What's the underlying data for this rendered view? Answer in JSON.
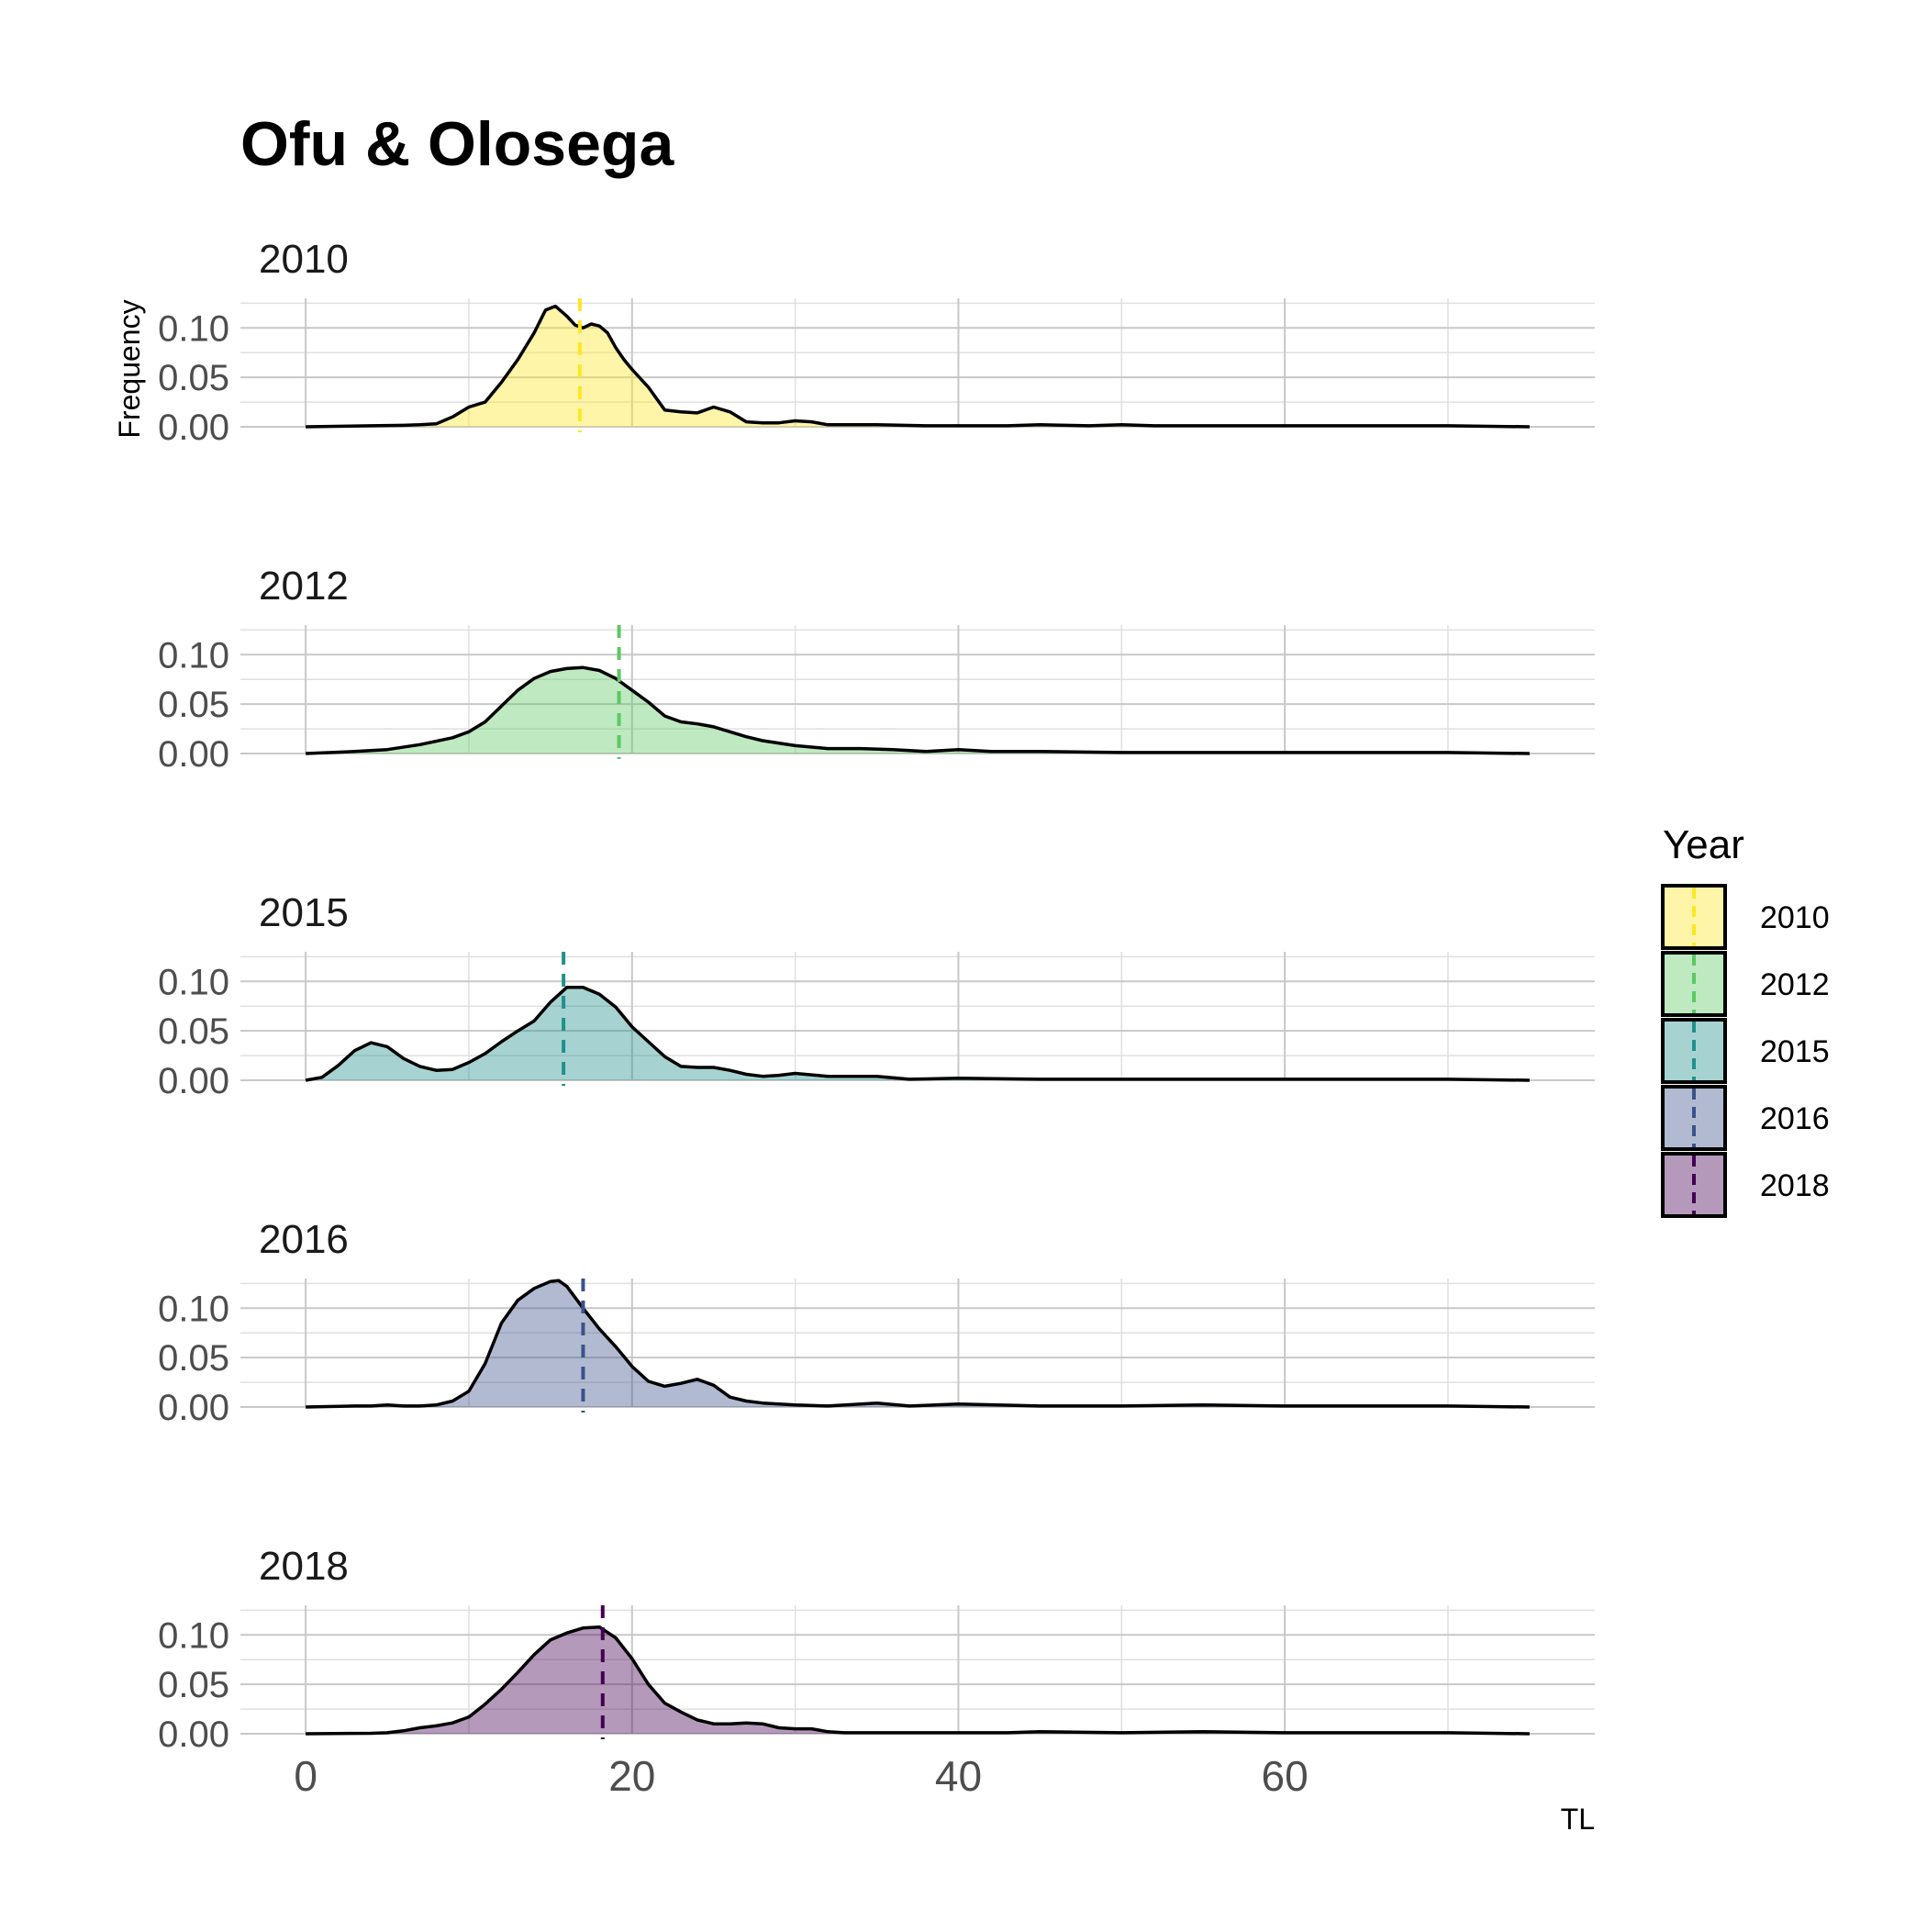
{
  "chart_data": {
    "type": "area",
    "title": "Ofu & Olosega",
    "xlabel": "TL",
    "ylabel": "Frequency",
    "xlim": [
      -4,
      79
    ],
    "ylim": [
      0,
      0.13
    ],
    "x_ticks": [
      0,
      20,
      40,
      60
    ],
    "x_tick_labels": [
      "0",
      "20",
      "40",
      "60"
    ],
    "y_ticks": [
      0.0,
      0.05,
      0.1
    ],
    "y_tick_labels": [
      "0.00",
      "0.05",
      "0.10"
    ],
    "grid": true,
    "legend": {
      "title": "Year",
      "position": "right"
    },
    "series": [
      {
        "name": "2010",
        "strip_label": "2010",
        "fill": "#FDE725",
        "mean_line": "#FDE725",
        "mean": 16.8,
        "x": [
          0,
          4,
          6,
          7,
          8,
          9,
          10,
          11,
          12,
          13,
          14,
          14.7,
          15.3,
          16,
          16.5,
          17,
          17.5,
          18,
          18.5,
          19,
          19.5,
          20,
          21,
          22,
          23,
          24,
          25,
          26,
          27,
          28,
          29,
          30,
          31,
          32,
          35,
          38,
          40,
          43,
          45,
          48,
          50,
          52,
          55,
          60,
          65,
          70,
          75
        ],
        "values": [
          0,
          0.001,
          0.0015,
          0.002,
          0.003,
          0.01,
          0.02,
          0.025,
          0.045,
          0.068,
          0.095,
          0.118,
          0.122,
          0.112,
          0.103,
          0.1,
          0.104,
          0.102,
          0.095,
          0.08,
          0.068,
          0.058,
          0.04,
          0.017,
          0.015,
          0.014,
          0.02,
          0.015,
          0.005,
          0.004,
          0.004,
          0.006,
          0.005,
          0.002,
          0.002,
          0.001,
          0.001,
          0.001,
          0.002,
          0.001,
          0.002,
          0.001,
          0.001,
          0.001,
          0.001,
          0.001,
          0
        ]
      },
      {
        "name": "2012",
        "strip_label": "2012",
        "fill": "#5DC863",
        "mean_line": "#5DC863",
        "mean": 19.2,
        "x": [
          0,
          3,
          5,
          7,
          9,
          10,
          11,
          12,
          13,
          14,
          15,
          16,
          17,
          18,
          19,
          20,
          21,
          22,
          23,
          24,
          25,
          26,
          27,
          28,
          30,
          32,
          34,
          36,
          38,
          40,
          42,
          45,
          50,
          55,
          60,
          65,
          70,
          75
        ],
        "values": [
          0,
          0.002,
          0.004,
          0.009,
          0.016,
          0.022,
          0.032,
          0.048,
          0.064,
          0.076,
          0.083,
          0.086,
          0.087,
          0.084,
          0.076,
          0.064,
          0.052,
          0.038,
          0.032,
          0.03,
          0.027,
          0.022,
          0.017,
          0.013,
          0.008,
          0.005,
          0.005,
          0.004,
          0.002,
          0.004,
          0.002,
          0.002,
          0.001,
          0.001,
          0.001,
          0.001,
          0.001,
          0
        ]
      },
      {
        "name": "2015",
        "strip_label": "2015",
        "fill": "#21908C",
        "mean_line": "#21908C",
        "mean": 15.8,
        "x": [
          0,
          1,
          2,
          3,
          4,
          5,
          6,
          7,
          8,
          9,
          10,
          11,
          12,
          13,
          14,
          15,
          16,
          17,
          18,
          19,
          20,
          21,
          22,
          23,
          24,
          25,
          26,
          27,
          28,
          29,
          30,
          32,
          35,
          37,
          40,
          45,
          50,
          55,
          60,
          65,
          70,
          75
        ],
        "values": [
          0,
          0.003,
          0.015,
          0.03,
          0.038,
          0.034,
          0.022,
          0.014,
          0.01,
          0.011,
          0.018,
          0.027,
          0.039,
          0.05,
          0.06,
          0.079,
          0.094,
          0.094,
          0.087,
          0.074,
          0.054,
          0.039,
          0.024,
          0.014,
          0.013,
          0.013,
          0.01,
          0.006,
          0.004,
          0.005,
          0.007,
          0.004,
          0.004,
          0.001,
          0.002,
          0.001,
          0.001,
          0.001,
          0.001,
          0.001,
          0.001,
          0
        ]
      },
      {
        "name": "2016",
        "strip_label": "2016",
        "fill": "#3B528B",
        "mean_line": "#3B528B",
        "mean": 17.0,
        "x": [
          0,
          3,
          4,
          5,
          6,
          7,
          8,
          9,
          10,
          11,
          12,
          13,
          14,
          15,
          15.5,
          16,
          17,
          18,
          19,
          20,
          21,
          22,
          23,
          24,
          25,
          26,
          27,
          28,
          29,
          30,
          32,
          35,
          37,
          40,
          45,
          50,
          55,
          60,
          65,
          70,
          75
        ],
        "values": [
          0,
          0.001,
          0.001,
          0.002,
          0.001,
          0.001,
          0.002,
          0.006,
          0.016,
          0.044,
          0.085,
          0.108,
          0.12,
          0.127,
          0.128,
          0.122,
          0.1,
          0.079,
          0.061,
          0.041,
          0.026,
          0.021,
          0.024,
          0.028,
          0.022,
          0.01,
          0.006,
          0.004,
          0.003,
          0.002,
          0.001,
          0.004,
          0.001,
          0.003,
          0.001,
          0.001,
          0.002,
          0.001,
          0.001,
          0.001,
          0
        ]
      },
      {
        "name": "2018",
        "strip_label": "2018",
        "fill": "#440154",
        "mean_line": "#440154",
        "mean": 18.2,
        "x": [
          0,
          4,
          5,
          6,
          7,
          8,
          9,
          10,
          11,
          12,
          13,
          14,
          15,
          16,
          17,
          18,
          19,
          20,
          21,
          22,
          23,
          24,
          25,
          26,
          27,
          28,
          29,
          30,
          31,
          32,
          33,
          35,
          38,
          40,
          43,
          45,
          50,
          55,
          60,
          65,
          70,
          75
        ],
        "values": [
          0,
          0.0005,
          0.001,
          0.003,
          0.006,
          0.008,
          0.011,
          0.017,
          0.03,
          0.045,
          0.062,
          0.08,
          0.095,
          0.102,
          0.107,
          0.108,
          0.097,
          0.076,
          0.05,
          0.031,
          0.022,
          0.014,
          0.01,
          0.01,
          0.011,
          0.01,
          0.006,
          0.005,
          0.005,
          0.002,
          0.001,
          0.001,
          0.001,
          0.001,
          0.001,
          0.002,
          0.001,
          0.002,
          0.001,
          0.001,
          0.001,
          0
        ]
      }
    ]
  }
}
